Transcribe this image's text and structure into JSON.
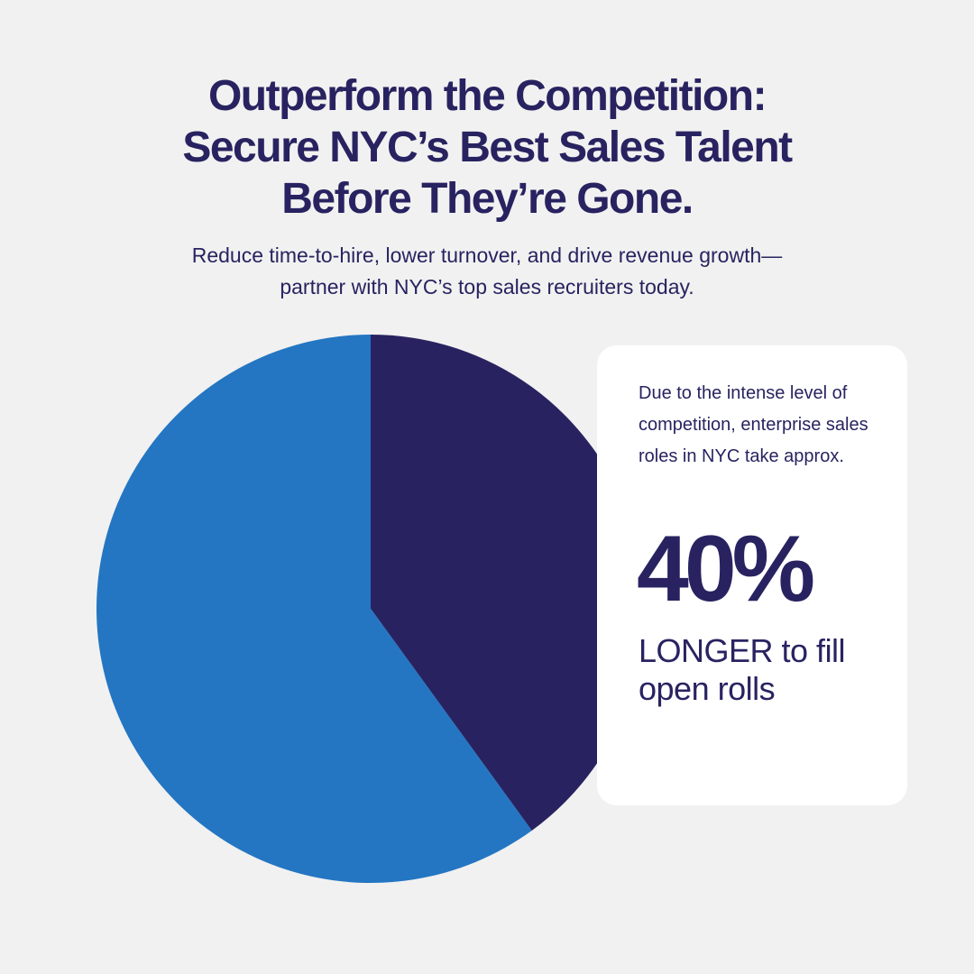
{
  "colors": {
    "background": "#f1f1f1",
    "navy": "#282360",
    "blue": "#2476c2",
    "card": "#ffffff"
  },
  "headline": {
    "line1": "Outperform the Competition:",
    "line2": "Secure NYC’s Best Sales Talent",
    "line3": "Before They’re Gone."
  },
  "subheadline": {
    "line1": "Reduce time-to-hire, lower turnover, and drive revenue growth—",
    "line2": "partner with NYC’s top sales recruiters today."
  },
  "card": {
    "lead_text": "Due to the intense level of competition, enterprise sales roles in NYC take approx.",
    "stat": "40%",
    "tail_text": "LONGER to fill open rolls"
  },
  "chart_data": {
    "type": "pie",
    "title": "",
    "slices": [
      {
        "label": "",
        "value": 40,
        "color": "#282360"
      },
      {
        "label": "",
        "value": 60,
        "color": "#2476c2"
      }
    ],
    "start_angle_deg": 0,
    "direction": "clockwise",
    "legend": "none"
  }
}
